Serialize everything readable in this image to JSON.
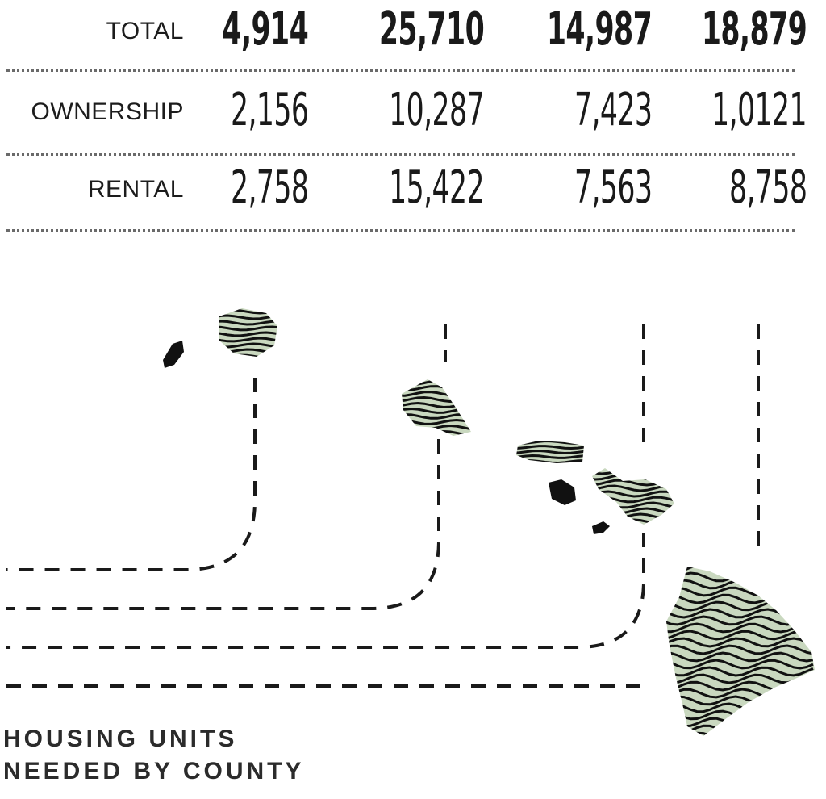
{
  "chart_data": {
    "type": "table",
    "title": "HOUSING UNITS NEEDED BY COUNTY",
    "row_labels": [
      "TOTAL",
      "OWNERSHIP",
      "RENTAL"
    ],
    "columns": 4,
    "rows": [
      {
        "label": "TOTAL",
        "values": [
          "4,914",
          "25,710",
          "14,987",
          "18,879"
        ]
      },
      {
        "label": "OWNERSHIP",
        "values": [
          "2,156",
          "10,287",
          "7,423",
          "1,0121"
        ]
      },
      {
        "label": "RENTAL",
        "values": [
          "2,758",
          "15,422",
          "7,563",
          "8,758"
        ]
      }
    ],
    "colors": {
      "text": "#1a1a1a",
      "island_fill": "#c9d8bf",
      "island_lines": "#111111",
      "dash": "#1a1a1a"
    }
  }
}
